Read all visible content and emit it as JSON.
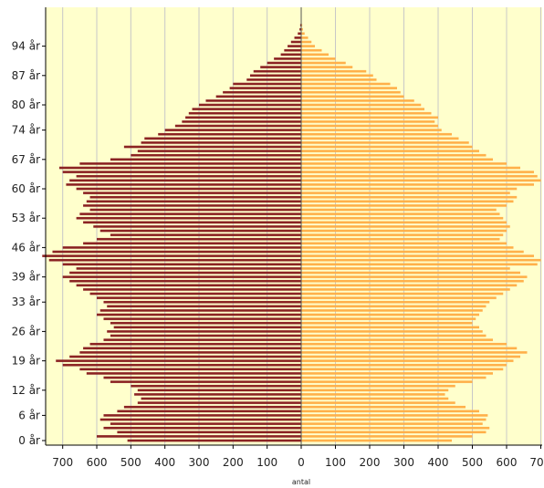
{
  "chart_data": {
    "type": "bar",
    "orientation": "horizontal",
    "subtype": "population-pyramid",
    "xlabel": "antal",
    "xlim_left": [
      750,
      0
    ],
    "xlim_right": [
      0,
      710
    ],
    "x_ticks_left": [
      "700",
      "600",
      "500",
      "400",
      "300",
      "200",
      "100",
      "0"
    ],
    "x_ticks_right": [
      "100",
      "200",
      "300",
      "400",
      "500",
      "600",
      "70"
    ],
    "y_ticks": [
      {
        "age": 94,
        "label": "94 år"
      },
      {
        "age": 87,
        "label": "87 år"
      },
      {
        "age": 80,
        "label": "80 år"
      },
      {
        "age": 74,
        "label": "74 år"
      },
      {
        "age": 67,
        "label": "67 år"
      },
      {
        "age": 60,
        "label": "60 år"
      },
      {
        "age": 53,
        "label": "53 år"
      },
      {
        "age": 46,
        "label": "46 år"
      },
      {
        "age": 39,
        "label": "39 år"
      },
      {
        "age": 33,
        "label": "33 år"
      },
      {
        "age": 26,
        "label": "26 år"
      },
      {
        "age": 19,
        "label": "19 år"
      },
      {
        "age": 12,
        "label": "12 år"
      },
      {
        "age": 6,
        "label": "6 år"
      },
      {
        "age": 0,
        "label": "0 år"
      }
    ],
    "grid": true,
    "colors": {
      "background": "#ffffcc",
      "left_series": "#8b2323",
      "right_series": "#ffb04a",
      "grid": "#c8c8c8",
      "axis": "#000000"
    },
    "ages": [
      0,
      1,
      2,
      3,
      4,
      5,
      6,
      7,
      8,
      9,
      10,
      11,
      12,
      13,
      14,
      15,
      16,
      17,
      18,
      19,
      20,
      21,
      22,
      23,
      24,
      25,
      26,
      27,
      28,
      29,
      30,
      31,
      32,
      33,
      34,
      35,
      36,
      37,
      38,
      39,
      40,
      41,
      42,
      43,
      44,
      45,
      46,
      47,
      48,
      49,
      50,
      51,
      52,
      53,
      54,
      55,
      56,
      57,
      58,
      59,
      60,
      61,
      62,
      63,
      64,
      65,
      66,
      67,
      68,
      69,
      70,
      71,
      72,
      73,
      74,
      75,
      76,
      77,
      78,
      79,
      80,
      81,
      82,
      83,
      84,
      85,
      86,
      87,
      88,
      89,
      90,
      91,
      92,
      93,
      94,
      95,
      96,
      97,
      98,
      99
    ],
    "series": [
      {
        "values": [
          510,
          600,
          540,
          580,
          560,
          590,
          580,
          540,
          520,
          480,
          470,
          490,
          480,
          500,
          560,
          580,
          630,
          650,
          700,
          720,
          680,
          650,
          640,
          620,
          580,
          560,
          570,
          550,
          560,
          580,
          600,
          590,
          570,
          580,
          600,
          620,
          640,
          660,
          680,
          700,
          680,
          660,
          700,
          740,
          760,
          730,
          700,
          640,
          600,
          560,
          590,
          610,
          640,
          660,
          650,
          620,
          640,
          630,
          620,
          640,
          660,
          690,
          680,
          660,
          700,
          710,
          650,
          560,
          500,
          480,
          520,
          470,
          460,
          420,
          400,
          370,
          350,
          340,
          330,
          320,
          300,
          280,
          250,
          230,
          210,
          200,
          160,
          150,
          140,
          120,
          100,
          80,
          60,
          50,
          40,
          30,
          20,
          10,
          5,
          3
        ]
      },
      {
        "values": [
          440,
          500,
          540,
          550,
          530,
          540,
          545,
          520,
          480,
          450,
          430,
          420,
          430,
          450,
          500,
          540,
          560,
          590,
          600,
          620,
          640,
          660,
          630,
          600,
          560,
          540,
          530,
          520,
          500,
          510,
          520,
          530,
          540,
          550,
          570,
          590,
          610,
          630,
          650,
          660,
          640,
          610,
          690,
          700,
          680,
          650,
          620,
          600,
          580,
          590,
          600,
          610,
          600,
          590,
          580,
          570,
          600,
          620,
          630,
          610,
          630,
          680,
          700,
          690,
          680,
          640,
          600,
          560,
          540,
          520,
          500,
          490,
          460,
          440,
          410,
          400,
          390,
          400,
          380,
          360,
          350,
          330,
          300,
          290,
          280,
          260,
          220,
          210,
          190,
          150,
          130,
          100,
          80,
          60,
          40,
          30,
          20,
          10,
          5,
          3
        ]
      }
    ]
  }
}
